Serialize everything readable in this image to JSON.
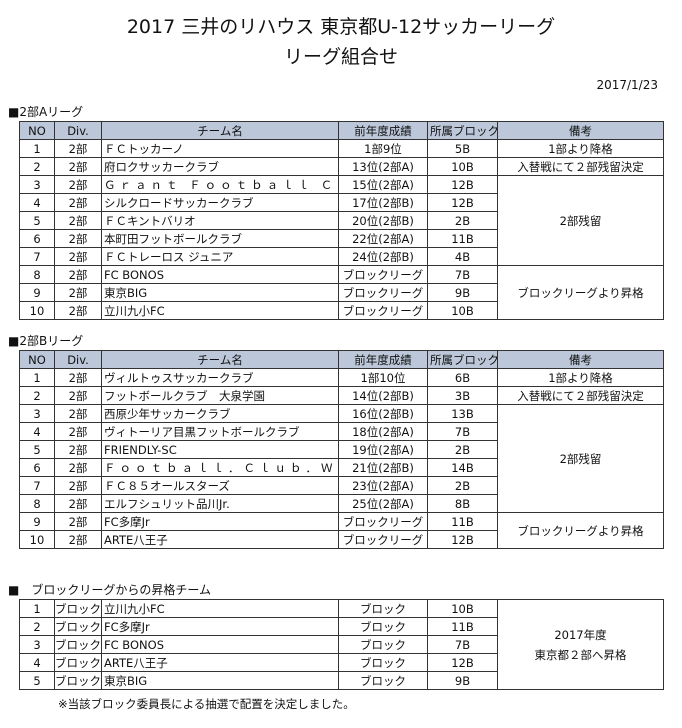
{
  "title_line1": "2017 三井のリハウス 東京都U-12サッカーリーグ",
  "title_line2": "リーグ組合せ",
  "date": "2017/1/23",
  "headers": [
    "NO",
    "Div.",
    "チーム名",
    "前年度成績",
    "所属ブロック",
    "備考"
  ],
  "header_color": "#bcc8da",
  "league_a": {
    "heading": "■2部Aリーグ",
    "rows": [
      {
        "no": "1",
        "div": "2部",
        "team": "ＦＣトッカーノ",
        "prev": "1部9位",
        "block": "5B"
      },
      {
        "no": "2",
        "div": "2部",
        "team": "府ロクサッカークラブ",
        "prev": "13位(2部A)",
        "block": "10B"
      },
      {
        "no": "3",
        "div": "2部",
        "team": "Ｇｒａｎｔ Ｆｏｏｔｂａｌｌ Ｃｌｕｂ",
        "prev": "15位(2部A)",
        "block": "12B"
      },
      {
        "no": "4",
        "div": "2部",
        "team": "シルクロードサッカークラブ",
        "prev": "17位(2部B)",
        "block": "12B"
      },
      {
        "no": "5",
        "div": "2部",
        "team": "ＦＣキントバリオ",
        "prev": "20位(2部B)",
        "block": "2B"
      },
      {
        "no": "6",
        "div": "2部",
        "team": "本町田フットボールクラブ",
        "prev": "22位(2部A)",
        "block": "11B"
      },
      {
        "no": "7",
        "div": "2部",
        "team": "ＦＣトレーロス ジュニア",
        "prev": "24位(2部B)",
        "block": "4B"
      },
      {
        "no": "8",
        "div": "2部",
        "team": "FC BONOS",
        "prev": "ブロックリーグ",
        "block": "7B"
      },
      {
        "no": "9",
        "div": "2部",
        "team": "東京BIG",
        "prev": "ブロックリーグ",
        "block": "9B"
      },
      {
        "no": "10",
        "div": "2部",
        "team": "立川九小FC",
        "prev": "ブロックリーグ",
        "block": "10B"
      }
    ],
    "notes": [
      "1部より降格",
      "入替戦にて２部残留決定",
      "2部残留",
      "ブロックリーグより昇格"
    ]
  },
  "league_b": {
    "heading": "■2部Bリーグ",
    "rows": [
      {
        "no": "1",
        "div": "2部",
        "team": "ヴィルトゥスサッカークラブ",
        "prev": "1部10位",
        "block": "6B"
      },
      {
        "no": "2",
        "div": "2部",
        "team": "フットボールクラブ　大泉学園",
        "prev": "14位(2部B)",
        "block": "3B"
      },
      {
        "no": "3",
        "div": "2部",
        "team": "西原少年サッカークラブ",
        "prev": "16位(2部B)",
        "block": "13B"
      },
      {
        "no": "4",
        "div": "2部",
        "team": "ヴィトーリア目黒フットボールクラブ",
        "prev": "18位(2部A)",
        "block": "7B"
      },
      {
        "no": "5",
        "div": "2部",
        "team": "FRIENDLY-SC",
        "prev": "19位(2部A)",
        "block": "2B"
      },
      {
        "no": "6",
        "div": "2部",
        "team": "Ｆｏｏｔｂａｌｌ．Ｃｌｕｂ．Ｗａｒａｇ",
        "prev": "21位(2部B)",
        "block": "14B"
      },
      {
        "no": "7",
        "div": "2部",
        "team": "ＦＣ８５オールスターズ",
        "prev": "23位(2部A)",
        "block": "2B"
      },
      {
        "no": "8",
        "div": "2部",
        "team": "エルフシュリット品川Jr.",
        "prev": "25位(2部A)",
        "block": "8B"
      },
      {
        "no": "9",
        "div": "2部",
        "team": "FC多摩Jr",
        "prev": "ブロックリーグ",
        "block": "11B"
      },
      {
        "no": "10",
        "div": "2部",
        "team": "ARTE八王子",
        "prev": "ブロックリーグ",
        "block": "12B"
      }
    ],
    "notes": [
      "1部より降格",
      "入替戦にて２部残留決定",
      "2部残留",
      "ブロックリーグより昇格"
    ]
  },
  "promoted": {
    "heading": "■　ブロックリーグからの昇格チーム",
    "rows": [
      {
        "no": "1",
        "div": "ブロック",
        "team": "立川九小FC",
        "prev": "ブロック",
        "block": "10B"
      },
      {
        "no": "2",
        "div": "ブロック",
        "team": "FC多摩Jr",
        "prev": "ブロック",
        "block": "11B"
      },
      {
        "no": "3",
        "div": "ブロック",
        "team": "FC BONOS",
        "prev": "ブロック",
        "block": "7B"
      },
      {
        "no": "4",
        "div": "ブロック",
        "team": "ARTE八王子",
        "prev": "ブロック",
        "block": "12B"
      },
      {
        "no": "5",
        "div": "ブロック",
        "team": "東京BIG",
        "prev": "ブロック",
        "block": "9B"
      }
    ],
    "note_line1": "2017年度",
    "note_line2": "東京都２部へ昇格",
    "footnote": "※当該ブロック委員長による抽選で配置を決定しました。"
  }
}
